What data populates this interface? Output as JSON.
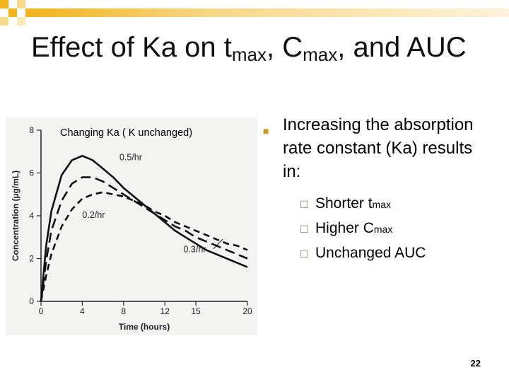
{
  "slide": {
    "title_part1": "Effect of Ka on t",
    "title_sub1": "max",
    "title_part2": ", C",
    "title_sub2": "max",
    "title_part3": ", and AUC",
    "page_number": "22",
    "accent_color": "#f2b31b",
    "accent_light": "#f7dc8a"
  },
  "bullets": {
    "marker_icon": "square-bullet-icon",
    "main": "Increasing the absorption rate constant (Ka) results in:",
    "items": [
      {
        "icon": "checkbox-icon",
        "text": "Shorter t",
        "sub": "max",
        "suffix": ""
      },
      {
        "icon": "checkbox-icon",
        "text": "Higher C",
        "sub": "max",
        "suffix": ""
      },
      {
        "icon": "checkbox-icon",
        "text": "Unchanged AUC",
        "sub": "",
        "suffix": ""
      }
    ]
  },
  "chart_data": {
    "type": "line",
    "caption": "Changing Ka ( K unchanged)",
    "xlabel": "Time (hours)",
    "ylabel": "Concentration (µg/mL)",
    "xlim": [
      0,
      20
    ],
    "ylim": [
      0,
      8
    ],
    "xticks": [
      0,
      4,
      8,
      12,
      15,
      20
    ],
    "yticks": [
      0,
      2,
      4,
      6,
      8
    ],
    "grid": false,
    "series": [
      {
        "name": "0.5/hr",
        "style": "solid",
        "points": [
          [
            0,
            0
          ],
          [
            0.5,
            2.6
          ],
          [
            1,
            4.2
          ],
          [
            2,
            5.9
          ],
          [
            3,
            6.6
          ],
          [
            4,
            6.8
          ],
          [
            5,
            6.6
          ],
          [
            6,
            6.2
          ],
          [
            7,
            5.8
          ],
          [
            8,
            5.3
          ],
          [
            9,
            4.9
          ],
          [
            10,
            4.5
          ],
          [
            11,
            4.1
          ],
          [
            12,
            3.7
          ],
          [
            13,
            3.3
          ],
          [
            14,
            3.0
          ],
          [
            15,
            2.7
          ],
          [
            16,
            2.4
          ],
          [
            17,
            2.2
          ],
          [
            18,
            2.0
          ],
          [
            19,
            1.8
          ],
          [
            20,
            1.6
          ]
        ]
      },
      {
        "name": "",
        "style": "long-dash",
        "points": [
          [
            0,
            0
          ],
          [
            0.5,
            1.9
          ],
          [
            1,
            3.3
          ],
          [
            2,
            4.7
          ],
          [
            3,
            5.5
          ],
          [
            4,
            5.8
          ],
          [
            5,
            5.8
          ],
          [
            6,
            5.6
          ],
          [
            7,
            5.3
          ],
          [
            8,
            5.0
          ],
          [
            9,
            4.7
          ],
          [
            10,
            4.4
          ],
          [
            11,
            4.1
          ],
          [
            12,
            3.8
          ],
          [
            13,
            3.5
          ],
          [
            14,
            3.3
          ],
          [
            15,
            3.0
          ],
          [
            16,
            2.8
          ],
          [
            17,
            2.6
          ],
          [
            18,
            2.4
          ],
          [
            19,
            2.2
          ],
          [
            20,
            2.0
          ]
        ]
      },
      {
        "name": "0.2/hr",
        "style": "dash",
        "points": [
          [
            0,
            0
          ],
          [
            0.5,
            1.2
          ],
          [
            1,
            2.2
          ],
          [
            2,
            3.5
          ],
          [
            3,
            4.3
          ],
          [
            4,
            4.8
          ],
          [
            5,
            5.0
          ],
          [
            6,
            5.1
          ],
          [
            7,
            5.0
          ],
          [
            8,
            4.9
          ],
          [
            9,
            4.7
          ],
          [
            10,
            4.5
          ],
          [
            11,
            4.2
          ],
          [
            12,
            4.0
          ],
          [
            13,
            3.7
          ],
          [
            14,
            3.5
          ],
          [
            15,
            3.3
          ],
          [
            16,
            3.1
          ],
          [
            17,
            2.9
          ],
          [
            18,
            2.7
          ],
          [
            19,
            2.6
          ],
          [
            20,
            2.4
          ]
        ]
      }
    ],
    "annotations": [
      "0.5/hr",
      "0.2/hr",
      "0.3/hr"
    ]
  }
}
